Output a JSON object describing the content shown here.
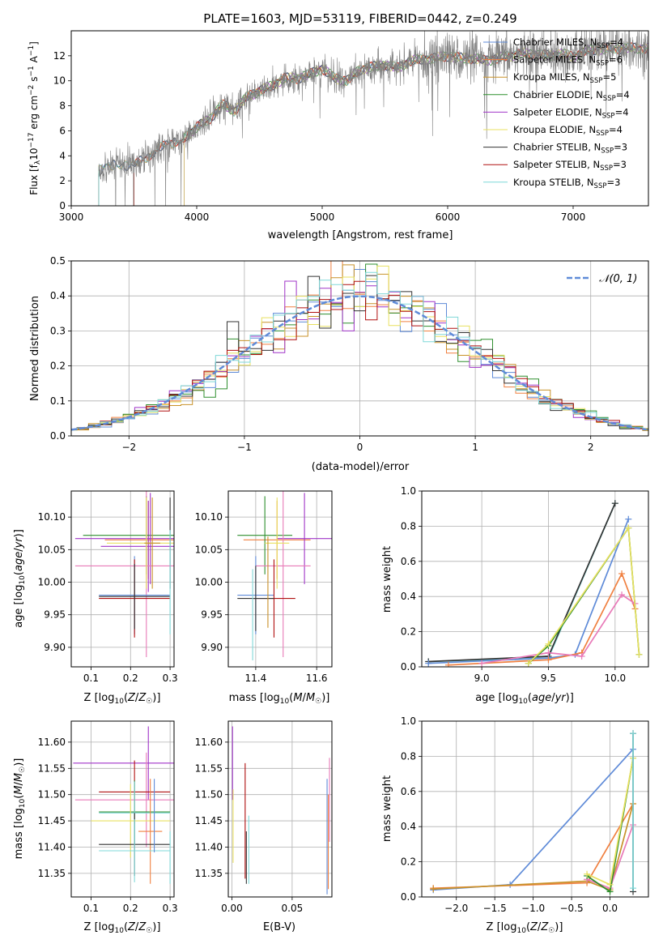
{
  "colors": {
    "c1": "#5f8bd8",
    "c2": "#f08040",
    "c3": "#c8922a",
    "c4": "#2f8f2f",
    "c5": "#a034c8",
    "c6": "#e8e060",
    "c7": "#333333",
    "c8": "#b01010",
    "c9": "#7fd8d8",
    "c10": "#e87ab8",
    "gray": "#808080"
  },
  "legend_entries": [
    {
      "label": "Chabrier MILES, N",
      "sub": "SSP",
      "tail": "=4",
      "color": "#5f8bd8"
    },
    {
      "label": "Salpeter MILES, N",
      "sub": "SSP",
      "tail": "=6",
      "color": "#f08040"
    },
    {
      "label": "Kroupa MILES, N",
      "sub": "SSP",
      "tail": "=5",
      "color": "#c8922a"
    },
    {
      "label": "Chabrier ELODIE, N",
      "sub": "SSP",
      "tail": "=4",
      "color": "#2f8f2f"
    },
    {
      "label": "Salpeter ELODIE, N",
      "sub": "SSP",
      "tail": "=4",
      "color": "#a034c8"
    },
    {
      "label": "Kroupa ELODIE, N",
      "sub": "SSP",
      "tail": "=4",
      "color": "#e8e060"
    },
    {
      "label": "Chabrier STELIB, N",
      "sub": "SSP",
      "tail": "=3",
      "color": "#333333"
    },
    {
      "label": "Salpeter STELIB, N",
      "sub": "SSP",
      "tail": "=3",
      "color": "#b01010"
    },
    {
      "label": "Kroupa STELIB, N",
      "sub": "SSP",
      "tail": "=3",
      "color": "#7fd8d8"
    }
  ],
  "chart_data": [
    {
      "id": "spectrum",
      "type": "line",
      "title": "PLATE=1603, MJD=53119, FIBERID=0442, z=0.249",
      "xlabel": "wavelength [Angstrom, rest frame]",
      "ylabel": "Flux [fλ10⁻¹⁷ erg cm⁻² s⁻¹ A⁻¹]",
      "xlim": [
        3000,
        7600
      ],
      "ylim": [
        0,
        14
      ],
      "xticks": [
        3000,
        4000,
        5000,
        6000,
        7000
      ],
      "yticks": [
        0,
        2,
        4,
        6,
        8,
        10,
        12
      ],
      "legend": "upper-right",
      "data_continuum": {
        "x": [
          3220,
          3300,
          3400,
          3500,
          3600,
          3700,
          3800,
          3900,
          4000,
          4100,
          4200,
          4300,
          4400,
          4500,
          4600,
          4700,
          4800,
          4900,
          5000,
          5100,
          5200,
          5300,
          5400,
          5500,
          5600,
          5700,
          5800,
          5900,
          6000,
          6100,
          6200,
          6300,
          6400,
          6500,
          6600,
          6700,
          6800,
          6900,
          7000,
          7100,
          7200,
          7300
        ],
        "y": [
          2.8,
          3.2,
          3.3,
          3.2,
          3.9,
          4.6,
          5.0,
          5.4,
          6.3,
          6.9,
          8.1,
          7.6,
          8.7,
          9.2,
          9.6,
          10.2,
          10.2,
          10.5,
          11.0,
          10.2,
          10.0,
          10.9,
          11.1,
          11.3,
          11.0,
          11.6,
          11.7,
          11.8,
          12.0,
          11.8,
          11.8,
          11.6,
          11.8,
          12.0,
          12.2,
          12.1,
          12.0,
          12.2,
          11.9,
          12.4,
          12.5,
          12.6
        ]
      }
    },
    {
      "id": "residuals",
      "type": "line",
      "xlabel": "(data-model)/error",
      "ylabel": "Normed distribution",
      "xlim": [
        -2.5,
        2.5
      ],
      "ylim": [
        0,
        0.5
      ],
      "xticks": [
        -2,
        -1,
        0,
        1,
        2
      ],
      "yticks": [
        0.0,
        0.1,
        0.2,
        0.3,
        0.4,
        0.5
      ],
      "legend_label": "𝒩(0, 1)",
      "gaussian_mean": 0,
      "gaussian_sigma": 1
    },
    {
      "id": "age-vs-Z",
      "type": "scatter",
      "xlabel": "Z [log10(Z/Z☉)]",
      "ylabel": "age  [log10(age/yr)]",
      "xlim": [
        0.05,
        0.31
      ],
      "ylim": [
        9.87,
        10.14
      ],
      "xticks": [
        0.1,
        0.2,
        0.3
      ],
      "yticks": [
        9.9,
        9.95,
        10.0,
        10.05,
        10.1
      ],
      "points": [
        {
          "x": 0.245,
          "y": 10.065,
          "xerr": 0.11,
          "yerr": 0.06,
          "color": "#f08040"
        },
        {
          "x": 0.245,
          "y": 10.055,
          "xerr": 0.12,
          "yerr": 0.07,
          "color": "#a034c8"
        },
        {
          "x": 0.24,
          "y": 10.072,
          "xerr": 0.16,
          "yerr": 0.06,
          "color": "#2f8f2f"
        },
        {
          "x": 0.25,
          "y": 10.067,
          "xerr": 0.19,
          "yerr": 0.07,
          "color": "#a034c8"
        },
        {
          "x": 0.24,
          "y": 10.025,
          "xerr": 0.18,
          "yerr": 0.14,
          "color": "#e87ab8"
        },
        {
          "x": 0.24,
          "y": 10.06,
          "xerr": 0.1,
          "yerr": 0.07,
          "color": "#e8e060"
        },
        {
          "x": 0.21,
          "y": 9.98,
          "xerr": 0.09,
          "yerr": 0.06,
          "color": "#5f8bd8"
        },
        {
          "x": 0.21,
          "y": 9.975,
          "xerr": 0.09,
          "yerr": 0.06,
          "color": "#b01010"
        },
        {
          "x": 0.21,
          "y": 9.978,
          "xerr": 0.09,
          "yerr": 0.05,
          "color": "#333333"
        },
        {
          "x": 0.3,
          "y": 10.06,
          "xerr": 0.0,
          "yerr": 0.07,
          "color": "#333333"
        },
        {
          "x": 0.3,
          "y": 10.0,
          "xerr": 0.0,
          "yerr": 0.08,
          "color": "#7fd8d8"
        },
        {
          "x": 0.255,
          "y": 10.06,
          "xerr": 0.02,
          "yerr": 0.07,
          "color": "#c8922a"
        }
      ]
    },
    {
      "id": "age-vs-mass",
      "type": "scatter",
      "xlabel": "mass [log10(M/M☉)]",
      "ylabel": "",
      "xlim": [
        11.31,
        11.65
      ],
      "ylim": [
        9.87,
        10.14
      ],
      "xticks": [
        11.4,
        11.6
      ],
      "yticks": [
        9.9,
        9.95,
        10.0,
        10.05,
        10.1
      ],
      "points": [
        {
          "x": 11.47,
          "y": 10.065,
          "xerr": 0.11,
          "yerr": 0.06,
          "color": "#f08040"
        },
        {
          "x": 11.56,
          "y": 10.067,
          "xerr": 0.09,
          "yerr": 0.07,
          "color": "#a034c8"
        },
        {
          "x": 11.43,
          "y": 10.072,
          "xerr": 0.09,
          "yerr": 0.06,
          "color": "#2f8f2f"
        },
        {
          "x": 11.49,
          "y": 10.025,
          "xerr": 0.09,
          "yerr": 0.14,
          "color": "#e87ab8"
        },
        {
          "x": 11.47,
          "y": 10.06,
          "xerr": 0.04,
          "yerr": 0.07,
          "color": "#e8e060"
        },
        {
          "x": 11.4,
          "y": 9.98,
          "xerr": 0.06,
          "yerr": 0.06,
          "color": "#5f8bd8"
        },
        {
          "x": 11.46,
          "y": 9.975,
          "xerr": 0.07,
          "yerr": 0.06,
          "color": "#b01010"
        },
        {
          "x": 11.4,
          "y": 9.975,
          "xerr": 0.06,
          "yerr": 0.05,
          "color": "#333333"
        },
        {
          "x": 11.39,
          "y": 9.95,
          "xerr": 0.0,
          "yerr": 0.07,
          "color": "#7fd8d8"
        },
        {
          "x": 11.44,
          "y": 10.0,
          "xerr": 0.0,
          "yerr": 0.07,
          "color": "#c8922a"
        }
      ]
    },
    {
      "id": "weight-vs-age",
      "type": "line",
      "xlabel": "age  [log10(age/yr)]",
      "ylabel": "mass weight",
      "xlim": [
        8.55,
        10.25
      ],
      "ylim": [
        0.0,
        1.0
      ],
      "xticks": [
        9.0,
        9.5,
        10.0
      ],
      "yticks": [
        0.0,
        0.2,
        0.4,
        0.6,
        0.8,
        1.0
      ],
      "series": [
        {
          "color": "#7fd8d8",
          "x": [
            8.6,
            9.5,
            10.0
          ],
          "y": [
            0.03,
            0.05,
            0.93
          ]
        },
        {
          "color": "#333333",
          "x": [
            8.6,
            9.5,
            10.0
          ],
          "y": [
            0.03,
            0.06,
            0.93
          ]
        },
        {
          "color": "#5f8bd8",
          "x": [
            8.6,
            9.5,
            9.7,
            10.1
          ],
          "y": [
            0.02,
            0.05,
            0.07,
            0.84
          ]
        },
        {
          "color": "#f08040",
          "x": [
            8.75,
            9.5,
            9.75,
            10.05,
            10.15
          ],
          "y": [
            0.01,
            0.04,
            0.08,
            0.53,
            0.33
          ]
        },
        {
          "color": "#e87ab8",
          "x": [
            9.0,
            9.5,
            9.75,
            10.05,
            10.15
          ],
          "y": [
            0.02,
            0.08,
            0.06,
            0.41,
            0.36
          ]
        },
        {
          "color": "#2f8f2f",
          "x": [
            9.35,
            9.5,
            10.1,
            10.18
          ],
          "y": [
            0.02,
            0.12,
            0.79,
            0.07
          ]
        },
        {
          "color": "#e8e060",
          "x": [
            9.35,
            9.5,
            10.1,
            10.18
          ],
          "y": [
            0.02,
            0.13,
            0.79,
            0.07
          ]
        }
      ]
    },
    {
      "id": "mass-vs-Z",
      "type": "scatter",
      "xlabel": "Z [log10(Z/Z☉)]",
      "ylabel": "mass [log10(M/M☉)]",
      "xlim": [
        0.05,
        0.31
      ],
      "ylim": [
        11.305,
        11.64
      ],
      "xticks": [
        0.1,
        0.2,
        0.3
      ],
      "yticks": [
        11.35,
        11.4,
        11.45,
        11.5,
        11.55,
        11.6
      ],
      "points": [
        {
          "x": 0.245,
          "y": 11.56,
          "xerr": 0.19,
          "yerr": 0.07,
          "color": "#a034c8"
        },
        {
          "x": 0.24,
          "y": 11.49,
          "xerr": 0.18,
          "yerr": 0.09,
          "color": "#e87ab8"
        },
        {
          "x": 0.21,
          "y": 11.505,
          "xerr": 0.09,
          "yerr": 0.06,
          "color": "#b01010"
        },
        {
          "x": 0.21,
          "y": 11.467,
          "xerr": 0.09,
          "yerr": 0.06,
          "color": "#2f8f2f"
        },
        {
          "x": 0.21,
          "y": 11.465,
          "xerr": 0.09,
          "yerr": 0.06,
          "color": "#7fd8d8"
        },
        {
          "x": 0.2,
          "y": 11.45,
          "xerr": 0.1,
          "yerr": 0.07,
          "color": "#e8e060"
        },
        {
          "x": 0.25,
          "y": 11.43,
          "xerr": 0.03,
          "yerr": 0.1,
          "color": "#f08040"
        },
        {
          "x": 0.21,
          "y": 11.405,
          "xerr": 0.09,
          "yerr": 0.06,
          "color": "#333333"
        },
        {
          "x": 0.21,
          "y": 11.393,
          "xerr": 0.09,
          "yerr": 0.06,
          "color": "#7fd8d8"
        },
        {
          "x": 0.26,
          "y": 11.46,
          "xerr": 0.0,
          "yerr": 0.07,
          "color": "#5f8bd8"
        },
        {
          "x": 0.3,
          "y": 11.38,
          "xerr": 0.0,
          "yerr": 0.05,
          "color": "#7fd8d8"
        }
      ]
    },
    {
      "id": "mass-vs-EBV",
      "type": "scatter",
      "xlabel": "E(B-V)",
      "ylabel": "",
      "xlim": [
        -0.003,
        0.083
      ],
      "ylim": [
        11.305,
        11.64
      ],
      "xticks": [
        0.0,
        0.05
      ],
      "xticklabels": [
        "0.00",
        "0.05"
      ],
      "yticks": [
        11.35,
        11.4,
        11.45,
        11.5,
        11.55,
        11.6
      ],
      "points": [
        {
          "x": 0.0005,
          "y": 11.56,
          "xerr": 0,
          "yerr": 0.07,
          "color": "#a034c8"
        },
        {
          "x": 0.001,
          "y": 11.44,
          "xerr": 0,
          "yerr": 0.07,
          "color": "#e8e060"
        },
        {
          "x": 0.011,
          "y": 11.45,
          "xerr": 0,
          "yerr": 0.11,
          "color": "#b01010"
        },
        {
          "x": 0.012,
          "y": 11.38,
          "xerr": 0,
          "yerr": 0.05,
          "color": "#333333"
        },
        {
          "x": 0.014,
          "y": 11.395,
          "xerr": 0,
          "yerr": 0.065,
          "color": "#7fd8d8"
        },
        {
          "x": 0.079,
          "y": 11.42,
          "xerr": 0,
          "yerr": 0.11,
          "color": "#5f8bd8"
        },
        {
          "x": 0.08,
          "y": 11.41,
          "xerr": 0,
          "yerr": 0.09,
          "color": "#f08040"
        },
        {
          "x": 0.081,
          "y": 11.49,
          "xerr": 0,
          "yerr": 0.08,
          "color": "#e87ab8"
        }
      ]
    },
    {
      "id": "weight-vs-Z",
      "type": "line",
      "xlabel": "Z [log10(Z/Z☉)]",
      "ylabel": "mass weight",
      "xlim": [
        -2.45,
        0.5
      ],
      "ylim": [
        0.0,
        1.0
      ],
      "xticks": [
        -2.0,
        -1.5,
        -1.0,
        -0.5,
        0.0
      ],
      "yticks": [
        0.0,
        0.2,
        0.4,
        0.6,
        0.8,
        1.0
      ],
      "series": [
        {
          "color": "#5f8bd8",
          "x": [
            -2.3,
            -1.3,
            0.3
          ],
          "y": [
            0.04,
            0.07,
            0.84
          ]
        },
        {
          "color": "#f08040",
          "x": [
            -2.3,
            -0.3,
            0.3
          ],
          "y": [
            0.05,
            0.08,
            0.53
          ]
        },
        {
          "color": "#c8922a",
          "x": [
            -2.3,
            -0.3,
            0.0,
            0.3
          ],
          "y": [
            0.045,
            0.09,
            0.04,
            0.53
          ]
        },
        {
          "color": "#e87ab8",
          "x": [
            -0.3,
            0.0,
            0.3
          ],
          "y": [
            0.1,
            0.05,
            0.41
          ]
        },
        {
          "color": "#2f8f2f",
          "x": [
            -0.3,
            0.0,
            0.3
          ],
          "y": [
            0.12,
            0.03,
            0.79
          ]
        },
        {
          "color": "#e8e060",
          "x": [
            -0.3,
            0.0,
            0.3
          ],
          "y": [
            0.13,
            0.07,
            0.79
          ]
        },
        {
          "color": "#333333",
          "x": [
            0.3,
            0.3
          ],
          "y": [
            0.03,
            0.93
          ]
        },
        {
          "color": "#7fd8d8",
          "x": [
            0.3,
            0.3
          ],
          "y": [
            0.05,
            0.93
          ]
        }
      ]
    }
  ]
}
